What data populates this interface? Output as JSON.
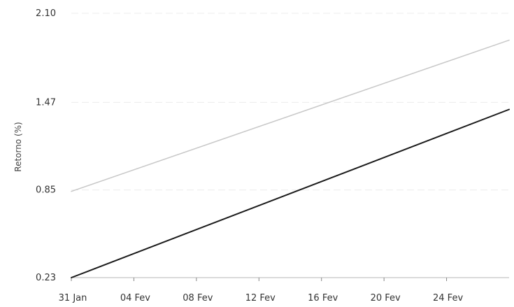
{
  "chart_data": {
    "type": "line",
    "title": "",
    "xlabel": "",
    "ylabel": "Retorno (%)",
    "x_ticks": [
      "31 Jan",
      "04 Fev",
      "08 Fev",
      "12 Fev",
      "16 Fev",
      "20 Fev",
      "24 Fev"
    ],
    "x_range": [
      "31 Jan",
      "28 Fev"
    ],
    "y_ticks": [
      "0.23",
      "0.85",
      "1.47",
      "2.10"
    ],
    "ylim": [
      0.23,
      2.1
    ],
    "grid": true,
    "series": [
      {
        "color": "#c8c8c8",
        "x": [
          "31 Jan",
          "28 Fev"
        ],
        "values": [
          0.84,
          1.91
        ]
      },
      {
        "color": "#1a1a1a",
        "x": [
          "31 Jan",
          "28 Fev"
        ],
        "values": [
          0.23,
          1.42
        ]
      }
    ]
  }
}
